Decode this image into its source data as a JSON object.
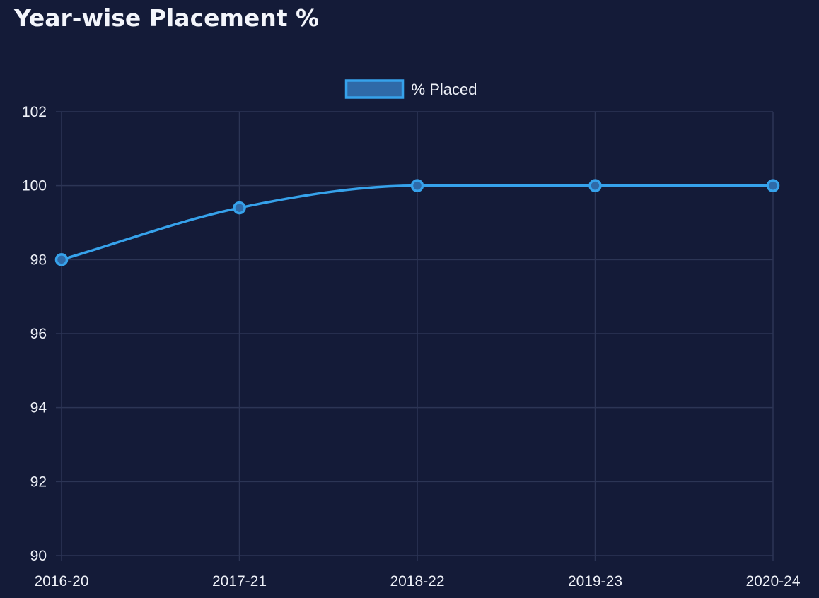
{
  "page": {
    "title": "Year-wise Placement %"
  },
  "chart_data": {
    "type": "line",
    "title": "",
    "xlabel": "",
    "ylabel": "",
    "categories": [
      "2016-20",
      "2017-21",
      "2018-22",
      "2019-23",
      "2020-24"
    ],
    "series": [
      {
        "name": "% Placed",
        "values": [
          98,
          99.4,
          100,
          100,
          100
        ],
        "color": "#36a2eb",
        "fill": "#2f6aa8"
      }
    ],
    "ylim": [
      90,
      102
    ],
    "yticks": [
      90,
      92,
      94,
      96,
      98,
      100,
      102
    ],
    "grid": true,
    "legend": "top-center",
    "smooth": true
  },
  "colors": {
    "background": "#141b38",
    "grid": "#2c3555",
    "text": "#eef1f8"
  }
}
